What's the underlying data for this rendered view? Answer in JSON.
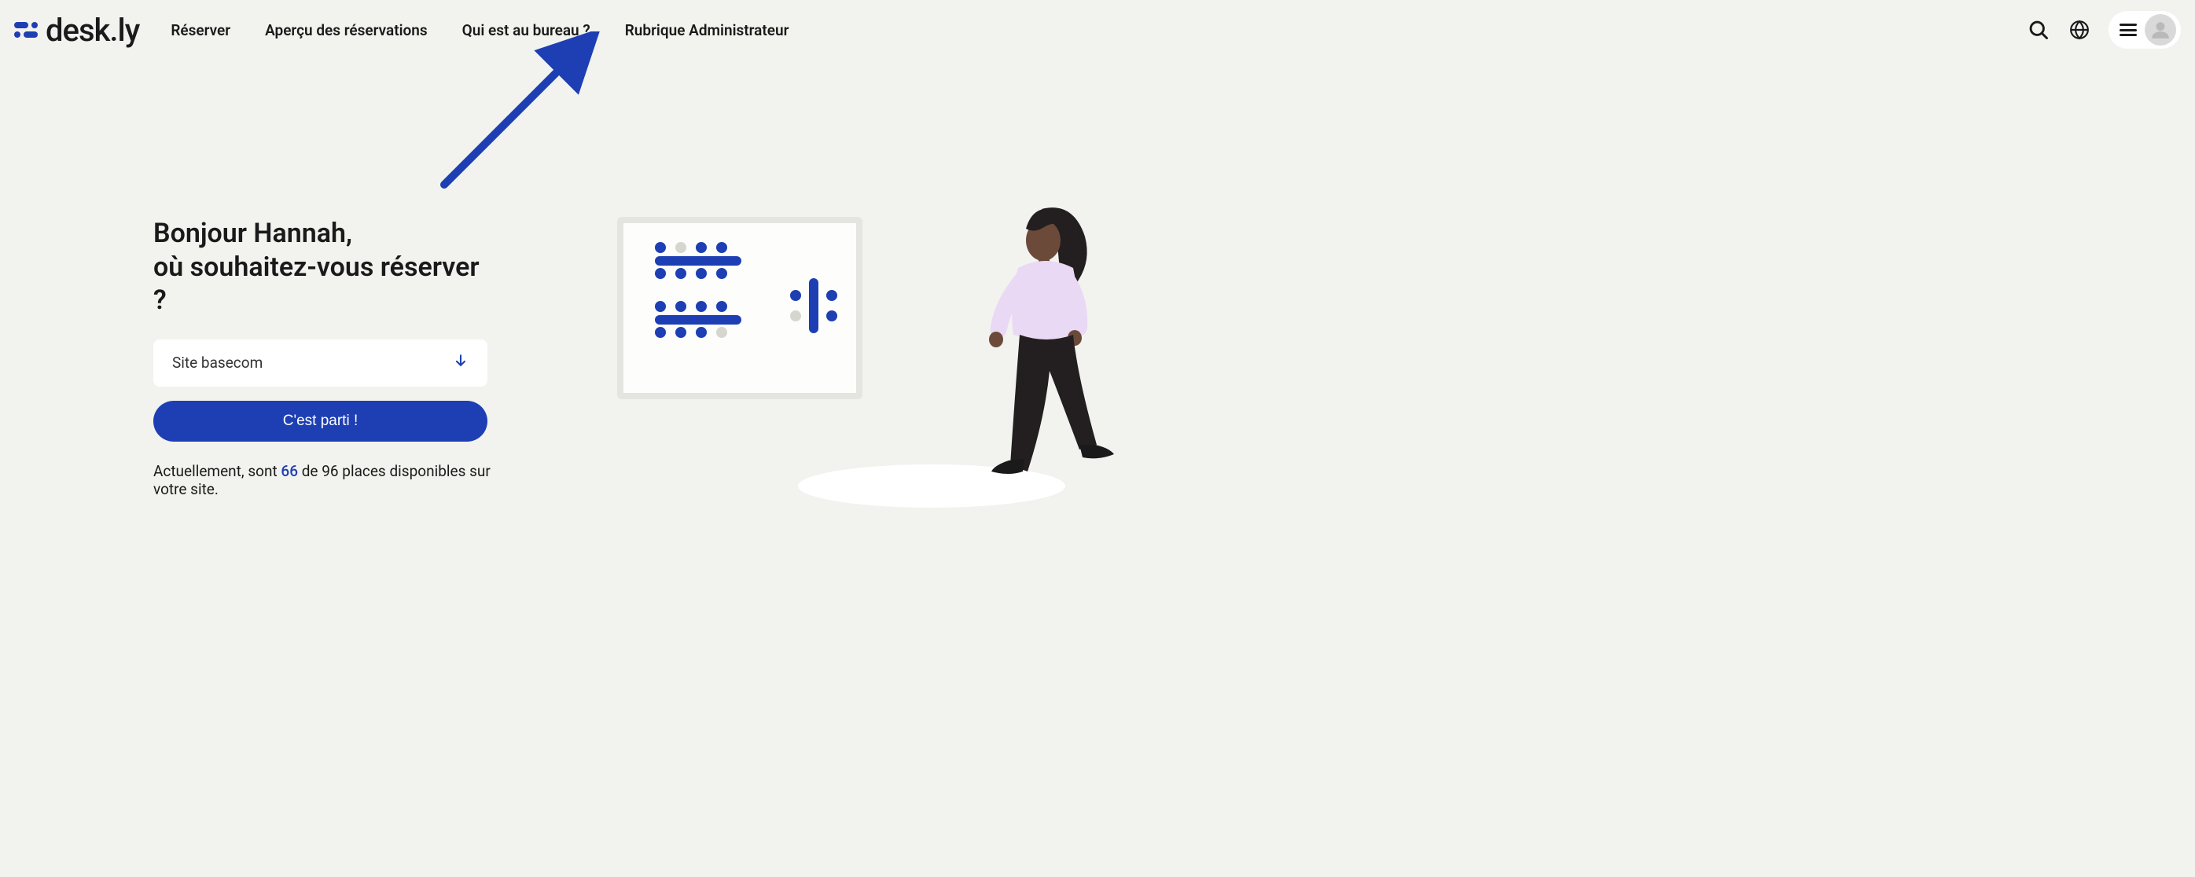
{
  "brand": {
    "name": "desk.ly",
    "accent": "#1d3fb3"
  },
  "nav": {
    "items": [
      {
        "label": "Réserver"
      },
      {
        "label": "Aperçu des réservations"
      },
      {
        "label": "Qui est au bureau ?"
      },
      {
        "label": "Rubrique Administrateur"
      }
    ]
  },
  "greeting": {
    "line1": "Bonjour Hannah,",
    "line2": "où souhaitez-vous réserver ?"
  },
  "site_select": {
    "value": "Site basecom"
  },
  "go_button": {
    "label": "C'est parti !"
  },
  "availability": {
    "prefix": "Actuellement, sont ",
    "available": "66",
    "middle": " de ",
    "total": "96",
    "suffix": " places disponibles sur votre site."
  },
  "annotation_arrow": {
    "color": "#1d3fb3",
    "target_nav_index": 3
  },
  "floorplan": {
    "frame_bg": "#fdfdfc",
    "frame_border": "#e4e4e1",
    "seat_blue": "#1d3fb3",
    "seat_grey": "#d6d6d0",
    "group1_top": [
      "blue",
      "grey",
      "blue",
      "blue"
    ],
    "group1_bottom": [
      "blue",
      "blue",
      "blue",
      "blue"
    ],
    "group2_top": [
      "blue",
      "blue",
      "blue",
      "blue"
    ],
    "group2_bottom": [
      "blue",
      "blue",
      "blue",
      "grey"
    ],
    "vgroup_left": [
      "blue",
      "grey"
    ],
    "vgroup_right": [
      "blue",
      "blue"
    ]
  },
  "illustration_person": {
    "skin": "#6b4a3a",
    "hair": "#231f20",
    "top": "#e9d9f5",
    "pants": "#231f20",
    "shoes": "#1a1a1a"
  },
  "colors": {
    "page_bg": "#f2f2ef",
    "text": "#1a1a1a",
    "white": "#ffffff",
    "avatar_bg": "#d9d9d9",
    "avatar_fg": "#b9b9b9"
  }
}
